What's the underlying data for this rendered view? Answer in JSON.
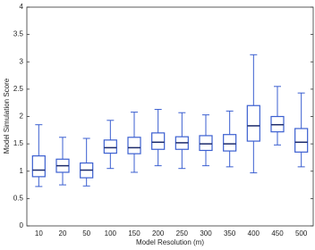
{
  "chart_data": {
    "type": "box",
    "xlabel": "Model Resolution (m)",
    "ylabel": "Model Simulation Score",
    "categories": [
      "10",
      "20",
      "50",
      "100",
      "150",
      "200",
      "250",
      "300",
      "350",
      "400",
      "450",
      "500"
    ],
    "boxes": [
      {
        "min": 0.72,
        "q1": 0.9,
        "median": 1.02,
        "q3": 1.28,
        "max": 1.85
      },
      {
        "min": 0.75,
        "q1": 0.98,
        "median": 1.1,
        "q3": 1.22,
        "max": 1.62
      },
      {
        "min": 0.73,
        "q1": 0.88,
        "median": 1.02,
        "q3": 1.15,
        "max": 1.6
      },
      {
        "min": 1.05,
        "q1": 1.33,
        "median": 1.43,
        "q3": 1.57,
        "max": 1.93
      },
      {
        "min": 0.98,
        "q1": 1.32,
        "median": 1.43,
        "q3": 1.62,
        "max": 2.08
      },
      {
        "min": 1.1,
        "q1": 1.4,
        "median": 1.53,
        "q3": 1.7,
        "max": 2.13
      },
      {
        "min": 1.05,
        "q1": 1.4,
        "median": 1.52,
        "q3": 1.63,
        "max": 2.07
      },
      {
        "min": 1.1,
        "q1": 1.38,
        "median": 1.5,
        "q3": 1.65,
        "max": 2.03
      },
      {
        "min": 1.08,
        "q1": 1.37,
        "median": 1.5,
        "q3": 1.67,
        "max": 2.1
      },
      {
        "min": 0.97,
        "q1": 1.55,
        "median": 1.83,
        "q3": 2.2,
        "max": 3.13
      },
      {
        "min": 1.48,
        "q1": 1.72,
        "median": 1.85,
        "q3": 2.0,
        "max": 2.55
      },
      {
        "min": 1.08,
        "q1": 1.35,
        "median": 1.53,
        "q3": 1.78,
        "max": 2.43
      }
    ],
    "color": "#3b5fd0",
    "median_color": "#1b2a6b",
    "ylim": [
      0,
      4
    ],
    "yticks": [
      0,
      0.5,
      1,
      1.5,
      2,
      2.5,
      3,
      3.5,
      4
    ]
  }
}
